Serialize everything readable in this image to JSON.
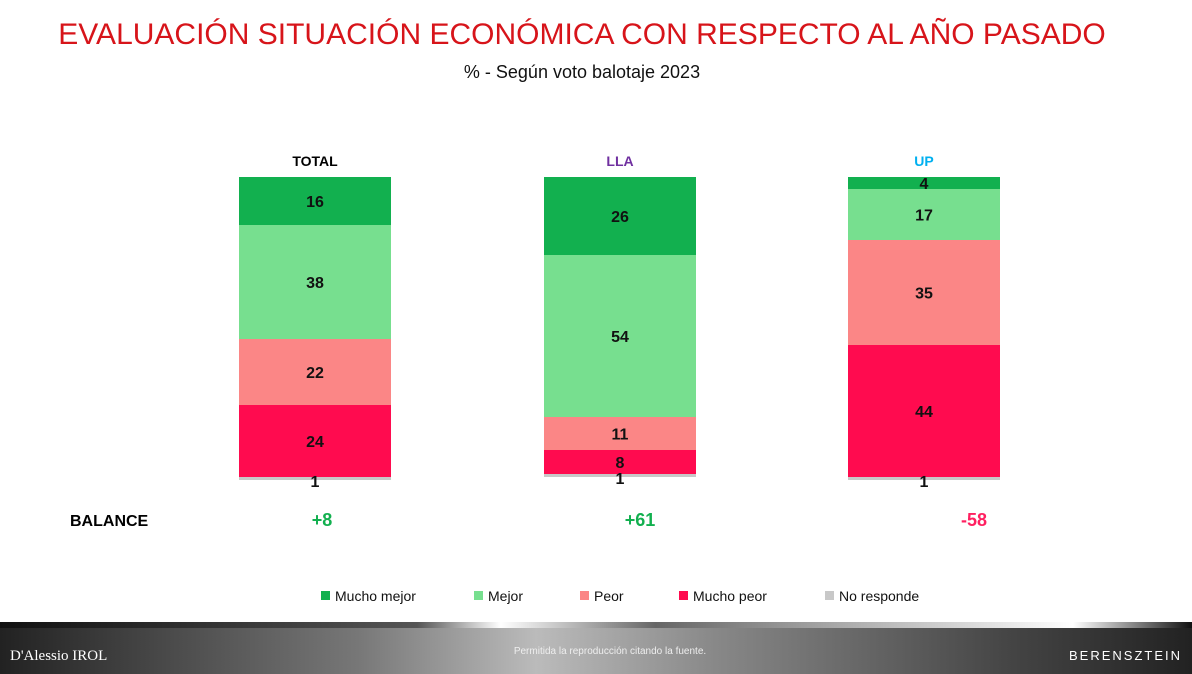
{
  "chart_data": {
    "type": "bar",
    "stacked": true,
    "title": "EVALUACIÓN SITUACIÓN ECONÓMICA CON RESPECTO AL AÑO PASADO",
    "subtitle": "% - Según voto balotaje 2023",
    "categories": [
      "TOTAL",
      "LLA",
      "UP"
    ],
    "category_colors": [
      "#000000",
      "#7030a0",
      "#00b0f0"
    ],
    "series": [
      {
        "name": "Mucho mejor",
        "color": "#12b04f",
        "values": [
          16,
          26,
          4
        ]
      },
      {
        "name": "Mejor",
        "color": "#77df8f",
        "values": [
          38,
          54,
          17
        ]
      },
      {
        "name": "Peor",
        "color": "#fb8686",
        "values": [
          22,
          11,
          35
        ]
      },
      {
        "name": "Mucho peor",
        "color": "#ff0b4f",
        "values": [
          24,
          8,
          44
        ]
      },
      {
        "name": "No responde",
        "color": "#c8c8c8",
        "values": [
          1,
          1,
          1
        ]
      }
    ],
    "balance_label": "BALANCE",
    "balance": [
      "+8",
      "+61",
      "-58"
    ],
    "balance_colors": [
      "#12b04f",
      "#12b04f",
      "#ff2060"
    ],
    "legend_position": "bottom",
    "ylim": [
      0,
      100
    ]
  },
  "footer": {
    "left": "D'Alessio IROL",
    "middle": "Permitida la reproducción citando la fuente.",
    "right": "BERENSZTEIN"
  }
}
